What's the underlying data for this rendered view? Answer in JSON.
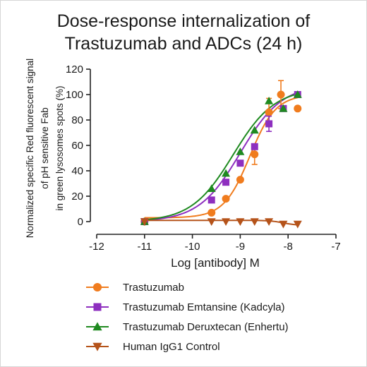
{
  "chart_data": {
    "type": "scatter",
    "title": [
      "Dose-response internalization of",
      "Trastuzumab and ADCs (24 h)"
    ],
    "xlabel": "Log [antibody] M",
    "ylabel": [
      "Normalized specific Red fluorescent signal",
      "of pH sensitive Fab",
      "in green lysosomes spots (%)"
    ],
    "xlim": [
      -12,
      -7
    ],
    "ylim": [
      0,
      120
    ],
    "xticks": [
      -12,
      -11,
      -10,
      -9,
      -8,
      -7
    ],
    "yticks": [
      0,
      20,
      40,
      60,
      80,
      100,
      120
    ],
    "legend_position": "bottom",
    "series": [
      {
        "name": "Trastuzumab",
        "color": "#f07c1e",
        "marker": "circle",
        "points": [
          {
            "x": -11.0,
            "y": 0
          },
          {
            "x": -9.6,
            "y": 7
          },
          {
            "x": -9.3,
            "y": 18
          },
          {
            "x": -9.0,
            "y": 33
          },
          {
            "x": -8.7,
            "y": 53,
            "err": 8
          },
          {
            "x": -8.4,
            "y": 86,
            "err": 11
          },
          {
            "x": -8.15,
            "y": 100,
            "err": 11
          },
          {
            "x": -7.8,
            "y": 89
          }
        ],
        "fit": {
          "bottom": 3,
          "top": 100,
          "logEC50": -8.8,
          "hill": 1.6
        }
      },
      {
        "name": "Trastuzumab Emtansine (Kadcyla)",
        "color": "#8e2fbf",
        "marker": "square",
        "points": [
          {
            "x": -11.0,
            "y": 0
          },
          {
            "x": -9.6,
            "y": 17
          },
          {
            "x": -9.3,
            "y": 31
          },
          {
            "x": -9.0,
            "y": 46
          },
          {
            "x": -8.7,
            "y": 59
          },
          {
            "x": -8.4,
            "y": 77,
            "err": 6
          },
          {
            "x": -8.1,
            "y": 89
          },
          {
            "x": -7.8,
            "y": 100
          }
        ],
        "fit": {
          "bottom": 0,
          "top": 108,
          "logEC50": -9.0,
          "hill": 1.0
        }
      },
      {
        "name": "Trastuzumab Deruxtecan (Enhertu)",
        "color": "#1f8a20",
        "marker": "triangle-up",
        "points": [
          {
            "x": -11.0,
            "y": 0
          },
          {
            "x": -9.6,
            "y": 26
          },
          {
            "x": -9.3,
            "y": 38
          },
          {
            "x": -9.0,
            "y": 55
          },
          {
            "x": -8.7,
            "y": 72
          },
          {
            "x": -8.4,
            "y": 95
          },
          {
            "x": -8.1,
            "y": 89
          },
          {
            "x": -7.8,
            "y": 100
          }
        ],
        "fit": {
          "bottom": 0,
          "top": 105,
          "logEC50": -9.15,
          "hill": 1.0
        }
      },
      {
        "name": "Human IgG1 Control",
        "color": "#b5531a",
        "marker": "triangle-down",
        "points": [
          {
            "x": -11.0,
            "y": 0
          },
          {
            "x": -9.6,
            "y": 0
          },
          {
            "x": -9.3,
            "y": 0
          },
          {
            "x": -9.0,
            "y": 0
          },
          {
            "x": -8.7,
            "y": 0
          },
          {
            "x": -8.4,
            "y": 0
          },
          {
            "x": -8.1,
            "y": -2
          },
          {
            "x": -7.8,
            "y": -2
          }
        ],
        "fit": {
          "bottom": 1,
          "top": -3,
          "logEC50": -8.1,
          "hill": 3.0
        }
      }
    ]
  }
}
